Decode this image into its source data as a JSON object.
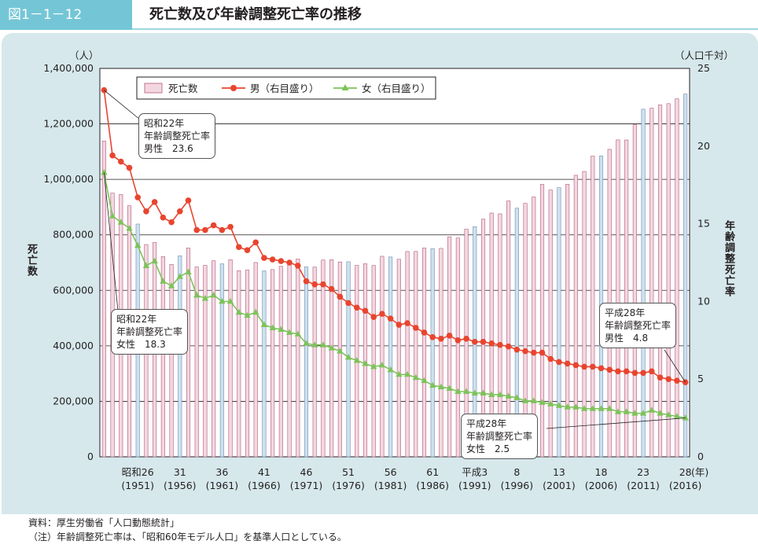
{
  "figure_label": "図1－1－12",
  "title": "死亡数及び年齢調整死亡率の推移",
  "colors": {
    "accent": "#74c6d6",
    "panel": "#d6e8ec",
    "bar_pink": "#f3d7e0",
    "bar_blue": "#cfe0ee",
    "male": "#e8452f",
    "female": "#7dc35a"
  },
  "chart_data": {
    "type": "bar+line",
    "x_years": [
      1947,
      1948,
      1949,
      1950,
      1951,
      1952,
      1953,
      1954,
      1955,
      1956,
      1957,
      1958,
      1959,
      1960,
      1961,
      1962,
      1963,
      1964,
      1965,
      1966,
      1967,
      1968,
      1969,
      1970,
      1971,
      1972,
      1973,
      1974,
      1975,
      1976,
      1977,
      1978,
      1979,
      1980,
      1981,
      1982,
      1983,
      1984,
      1985,
      1986,
      1987,
      1988,
      1989,
      1990,
      1991,
      1992,
      1993,
      1994,
      1995,
      1996,
      1997,
      1998,
      1999,
      2000,
      2001,
      2002,
      2003,
      2004,
      2005,
      2006,
      2007,
      2008,
      2009,
      2010,
      2011,
      2012,
      2013,
      2014,
      2015,
      2016
    ],
    "tick_labels": [
      {
        "era": "昭和26",
        "west": "(1951)"
      },
      {
        "era": "31",
        "west": "(1956)"
      },
      {
        "era": "36",
        "west": "(1961)"
      },
      {
        "era": "41",
        "west": "(1966)"
      },
      {
        "era": "46",
        "west": "(1971)"
      },
      {
        "era": "51",
        "west": "(1976)"
      },
      {
        "era": "56",
        "west": "(1981)"
      },
      {
        "era": "61",
        "west": "(1986)"
      },
      {
        "era": "平成3",
        "west": "(1991)"
      },
      {
        "era": "8",
        "west": "(1996)"
      },
      {
        "era": "13",
        "west": "(2001)"
      },
      {
        "era": "18",
        "west": "(2006)"
      },
      {
        "era": "23",
        "west": "(2011)"
      },
      {
        "era": "28",
        "west": "(2016)"
      }
    ],
    "x_suffix": "(年)",
    "series": [
      {
        "name": "死亡数",
        "type": "bar",
        "axis": "left",
        "values": [
          1138000,
          950600,
          945400,
          904900,
          838900,
          765100,
          772500,
          721500,
          693500,
          724500,
          752400,
          684200,
          689900,
          706600,
          695600,
          710300,
          670800,
          673100,
          700400,
          670300,
          675000,
          686600,
          693800,
          712900,
          684500,
          683800,
          709400,
          710500,
          702300,
          703200,
          690100,
          695800,
          689700,
          722800,
          720300,
          711900,
          740000,
          740200,
          752300,
          750600,
          751200,
          793000,
          788600,
          820300,
          829800,
          856600,
          878500,
          875900,
          922100,
          896200,
          913400,
          936500,
          982000,
          961700,
          970300,
          982400,
          1014900,
          1028600,
          1083800,
          1084500,
          1108300,
          1142400,
          1142000,
          1197000,
          1253100,
          1256400,
          1268400,
          1273000,
          1290400,
          1307700
        ]
      },
      {
        "name": "男（右目盛り）",
        "type": "line",
        "axis": "right",
        "values": [
          23.6,
          19.4,
          19.0,
          18.6,
          16.7,
          15.8,
          16.4,
          15.4,
          15.1,
          15.8,
          16.5,
          14.6,
          14.6,
          14.9,
          14.6,
          14.8,
          13.5,
          13.3,
          13.8,
          12.8,
          12.7,
          12.6,
          12.5,
          12.3,
          11.3,
          11.1,
          11.1,
          10.8,
          10.3,
          9.9,
          9.6,
          9.4,
          9.0,
          9.2,
          8.9,
          8.5,
          8.6,
          8.3,
          8.0,
          7.7,
          7.6,
          7.8,
          7.5,
          7.6,
          7.4,
          7.4,
          7.3,
          7.2,
          7.1,
          6.9,
          6.8,
          6.7,
          6.7,
          6.3,
          6.1,
          6.0,
          5.9,
          5.8,
          5.8,
          5.7,
          5.6,
          5.5,
          5.5,
          5.4,
          5.4,
          5.5,
          5.1,
          5.0,
          4.9,
          4.8
        ]
      },
      {
        "name": "女（右目盛り）",
        "type": "line",
        "axis": "right",
        "values": [
          18.3,
          15.5,
          15.1,
          14.7,
          13.6,
          12.3,
          12.6,
          11.3,
          11.0,
          11.6,
          11.9,
          10.4,
          10.2,
          10.4,
          10.0,
          10.0,
          9.3,
          9.1,
          9.3,
          8.5,
          8.3,
          8.2,
          8.0,
          7.9,
          7.3,
          7.2,
          7.2,
          7.0,
          6.8,
          6.4,
          6.2,
          6.0,
          5.8,
          5.9,
          5.6,
          5.3,
          5.3,
          5.1,
          4.9,
          4.6,
          4.5,
          4.4,
          4.2,
          4.2,
          4.1,
          4.1,
          4.0,
          4.0,
          3.9,
          3.8,
          3.6,
          3.6,
          3.5,
          3.4,
          3.3,
          3.2,
          3.2,
          3.1,
          3.1,
          3.1,
          3.1,
          2.9,
          2.9,
          2.8,
          2.8,
          3.0,
          2.8,
          2.7,
          2.6,
          2.5
        ]
      }
    ],
    "highlight_years": [
      1951,
      1956,
      1961,
      1966,
      1971,
      1976,
      1981,
      1986,
      1991,
      1996,
      2001,
      2006,
      2011,
      2016
    ],
    "y_left": {
      "label": "死亡数",
      "unit": "（人）",
      "min": 0,
      "max": 1400000,
      "ticks": [
        "0",
        "200,000",
        "400,000",
        "600,000",
        "800,000",
        "1,000,000",
        "1,200,000",
        "1,400,000"
      ]
    },
    "y_right": {
      "label": "年齢調整死亡率",
      "unit": "（人口千対）",
      "min": 0,
      "max": 25,
      "ticks": [
        "0",
        "5",
        "10",
        "15",
        "20",
        "25"
      ]
    },
    "legend": {
      "position": "top-left",
      "items": [
        "死亡数",
        "男（右目盛り）",
        "女（右目盛り）"
      ]
    },
    "annotations": [
      {
        "lines": [
          "昭和22年",
          "年齢調整死亡率",
          "男性　23.6"
        ]
      },
      {
        "lines": [
          "昭和22年",
          "年齢調整死亡率",
          "女性　18.3"
        ]
      },
      {
        "lines": [
          "平成28年",
          "年齢調整死亡率",
          "男性　4.8"
        ]
      },
      {
        "lines": [
          "平成28年",
          "年齢調整死亡率",
          "女性　2.5"
        ]
      }
    ]
  },
  "source": "資料：厚生労働省「人口動態統計」",
  "note": "（注）年齢調整死亡率は、「昭和60年モデル人口」を基準人口としている。"
}
